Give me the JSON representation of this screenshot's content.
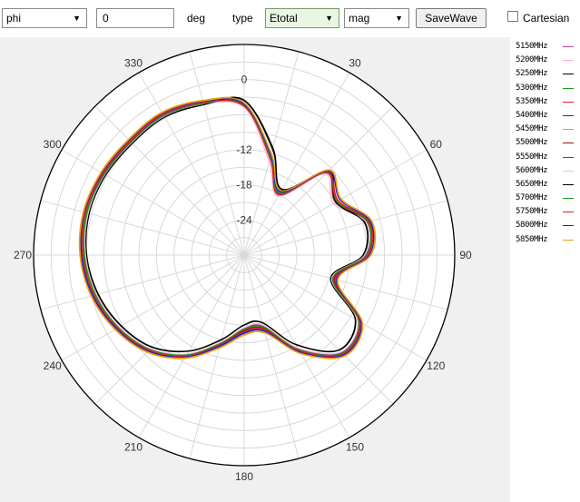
{
  "toolbar": {
    "plane_select": "phi",
    "angle_value": "0",
    "angle_unit": "deg",
    "type_label": "type",
    "field_select": "Etotal",
    "format_select": "mag",
    "save_label": "SaveWave",
    "cartesian_label": "Cartesian",
    "cartesian_checked": false
  },
  "chart_data": {
    "type": "polar-line",
    "theta_direction": "clockwise",
    "theta_zero": "top",
    "angle_ticks": [
      "0",
      "30",
      "60",
      "90",
      "120",
      "150",
      "180",
      "210",
      "240",
      "270",
      "300",
      "330"
    ],
    "radial_ticks": [
      {
        "value": 0,
        "label": "0"
      },
      {
        "value": -6,
        "label": ""
      },
      {
        "value": -12,
        "label": "-12"
      },
      {
        "value": -18,
        "label": "-18"
      },
      {
        "value": -24,
        "label": "-24"
      }
    ],
    "rlim": [
      -30,
      6
    ],
    "angles_deg": [
      0,
      15,
      30,
      45,
      60,
      75,
      90,
      105,
      120,
      135,
      150,
      165,
      180,
      195,
      210,
      225,
      240,
      255,
      270,
      285,
      300,
      315,
      330,
      345
    ],
    "series": [
      {
        "name": "5150MHz",
        "color": "#c0409a",
        "values": [
          -4.5,
          -13,
          -18,
          -10,
          -12,
          -8,
          -9,
          -14,
          -7,
          -6,
          -11,
          -17,
          -17,
          -14,
          -10,
          -7,
          -5,
          -3.5,
          -2.5,
          -2,
          -2.2,
          -2.5,
          -2.3,
          -3
        ]
      },
      {
        "name": "5200MHz",
        "color": "#ffb0d0",
        "values": [
          -4.7,
          -13.5,
          -18.3,
          -10.3,
          -12.3,
          -8.3,
          -9.3,
          -14.3,
          -7.4,
          -6.5,
          -11.6,
          -17.5,
          -17.5,
          -14.5,
          -10.4,
          -7.3,
          -5.3,
          -3.8,
          -2.8,
          -2.3,
          -2.4,
          -2.7,
          -2.5,
          -3.2
        ]
      },
      {
        "name": "5250MHz",
        "color": "#000000",
        "values": [
          -3.5,
          -11,
          -17,
          -9.5,
          -11.8,
          -8.6,
          -9.6,
          -14.6,
          -8,
          -7,
          -12.3,
          -18,
          -18,
          -15,
          -11,
          -7.7,
          -5.7,
          -4.1,
          -3,
          -2.5,
          -2.6,
          -2.9,
          -2.7,
          -3.3
        ]
      },
      {
        "name": "5300MHz",
        "color": "#1a9a1a",
        "values": [
          -4.2,
          -12.5,
          -17.6,
          -9.8,
          -11.6,
          -8,
          -9,
          -14.2,
          -7.3,
          -6.2,
          -11.2,
          -17.2,
          -17.2,
          -14.3,
          -10.2,
          -7.1,
          -5.1,
          -3.6,
          -2.6,
          -2.1,
          -2.3,
          -2.6,
          -2.4,
          -3.1
        ]
      },
      {
        "name": "5350MHz",
        "color": "#e02020",
        "values": [
          -4.4,
          -12.8,
          -17.9,
          -9.9,
          -11.4,
          -7.8,
          -8.8,
          -13.8,
          -7.1,
          -6,
          -11,
          -16.8,
          -16.8,
          -14,
          -10,
          -6.9,
          -4.9,
          -3.3,
          -2.3,
          -1.8,
          -2,
          -2.3,
          -2.1,
          -2.9
        ]
      },
      {
        "name": "5400MHz",
        "color": "#2020e0",
        "values": [
          -4.1,
          -12.2,
          -17.4,
          -9.6,
          -11,
          -7.6,
          -8.5,
          -13.6,
          -6.8,
          -5.8,
          -10.7,
          -16.5,
          -16.6,
          -13.8,
          -9.8,
          -6.7,
          -4.7,
          -3.1,
          -2.1,
          -1.6,
          -1.8,
          -2.1,
          -1.9,
          -2.7
        ]
      },
      {
        "name": "5450MHz",
        "color": "#f0a000",
        "values": [
          -3.9,
          -12,
          -17.2,
          -9.4,
          -10.8,
          -7.4,
          -8.3,
          -13.4,
          -6.6,
          -5.6,
          -10.5,
          -16.2,
          -16.3,
          -13.5,
          -9.6,
          -6.5,
          -4.5,
          -2.9,
          -1.9,
          -1.5,
          -1.7,
          -2,
          -1.8,
          -2.6
        ]
      },
      {
        "name": "5500MHz",
        "color": "#a01010",
        "values": [
          -4.6,
          -12.9,
          -18.1,
          -10.1,
          -11.9,
          -8.2,
          -9.1,
          -14.1,
          -7.2,
          -6.1,
          -11.1,
          -17,
          -17.1,
          -14.2,
          -10.1,
          -7,
          -5,
          -3.4,
          -2.4,
          -1.9,
          -2.1,
          -2.4,
          -2.2,
          -3
        ]
      },
      {
        "name": "5550MHz",
        "color": "#8a2aa0",
        "values": [
          -4.3,
          -12.6,
          -17.7,
          -9.7,
          -11.7,
          -8.1,
          -9.2,
          -14.4,
          -7.5,
          -6.4,
          -11.4,
          -17.4,
          -17.4,
          -14.4,
          -10.3,
          -7.2,
          -5.2,
          -3.7,
          -2.7,
          -2.2,
          -2.3,
          -2.6,
          -2.4,
          -3.1
        ]
      },
      {
        "name": "5600MHz",
        "color": "#f4c0d8",
        "values": [
          -4.8,
          -13.2,
          -18.4,
          -10.4,
          -12.4,
          -8.4,
          -9.4,
          -14.5,
          -7.6,
          -6.6,
          -11.7,
          -17.6,
          -17.6,
          -14.6,
          -10.5,
          -7.4,
          -5.4,
          -3.9,
          -2.9,
          -2.4,
          -2.5,
          -2.8,
          -2.6,
          -3.3
        ]
      },
      {
        "name": "5650MHz",
        "color": "#000000",
        "values": [
          -3.6,
          -11.3,
          -17.1,
          -9.6,
          -11.9,
          -8.7,
          -9.7,
          -14.7,
          -8.1,
          -7.1,
          -12.4,
          -18.1,
          -18.1,
          -15.1,
          -11.1,
          -7.8,
          -5.8,
          -4.2,
          -3.1,
          -2.6,
          -2.7,
          -3,
          -2.8,
          -3.4
        ]
      },
      {
        "name": "5700MHz",
        "color": "#1a9a1a",
        "values": [
          -4.3,
          -12.7,
          -17.8,
          -9.9,
          -11.7,
          -8.1,
          -9.1,
          -14.3,
          -7.4,
          -6.3,
          -11.3,
          -17.3,
          -17.3,
          -14.4,
          -10.3,
          -7.2,
          -5.2,
          -3.7,
          -2.7,
          -2.2,
          -2.4,
          -2.7,
          -2.5,
          -3.2
        ]
      },
      {
        "name": "5750MHz",
        "color": "#e02020",
        "values": [
          -4.5,
          -12.9,
          -18,
          -10,
          -11.5,
          -7.9,
          -8.9,
          -13.9,
          -7.2,
          -6.1,
          -11.1,
          -16.9,
          -16.9,
          -14.1,
          -10.1,
          -7,
          -5,
          -3.4,
          -2.4,
          -1.9,
          -2.1,
          -2.4,
          -2.2,
          -3
        ]
      },
      {
        "name": "5800MHz",
        "color": "#2020e0",
        "values": [
          -4.2,
          -12.3,
          -17.5,
          -9.7,
          -11.1,
          -7.7,
          -8.6,
          -13.7,
          -6.9,
          -5.9,
          -10.8,
          -16.6,
          -16.7,
          -13.9,
          -9.9,
          -6.8,
          -4.8,
          -3.2,
          -2.2,
          -1.7,
          -1.9,
          -2.2,
          -2,
          -2.8
        ]
      },
      {
        "name": "5850MHz",
        "color": "#f0a000",
        "values": [
          -4,
          -12.1,
          -17.3,
          -9.5,
          -10.9,
          -7.5,
          -8.4,
          -13.5,
          -6.7,
          -5.7,
          -10.6,
          -16.3,
          -16.4,
          -13.6,
          -9.7,
          -6.6,
          -4.6,
          -3,
          -2,
          -1.6,
          -1.8,
          -2.1,
          -1.9,
          -2.7
        ]
      }
    ]
  }
}
